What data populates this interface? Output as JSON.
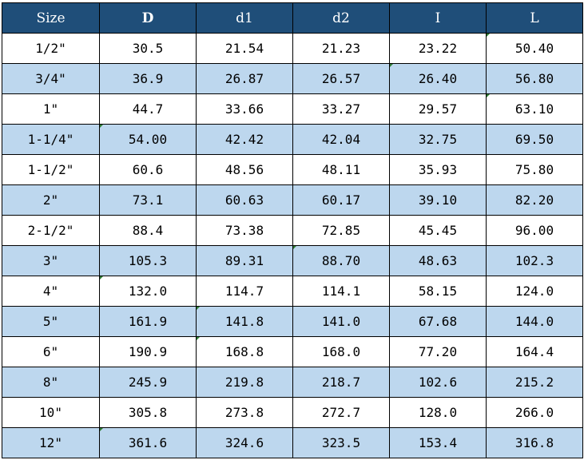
{
  "headers": [
    "Size",
    "D",
    "d1",
    "d2",
    "I",
    "L"
  ],
  "rows": [
    [
      "1/2\"",
      "30.5",
      "21.54",
      "21.23",
      "23.22",
      "50.40"
    ],
    [
      "3/4\"",
      "36.9",
      "26.87",
      "26.57",
      "26.40",
      "56.80"
    ],
    [
      "1\"",
      "44.7",
      "33.66",
      "33.27",
      "29.57",
      "63.10"
    ],
    [
      "1-1/4\"",
      "54.00",
      "42.42",
      "42.04",
      "32.75",
      "69.50"
    ],
    [
      "1-1/2\"",
      "60.6",
      "48.56",
      "48.11",
      "35.93",
      "75.80"
    ],
    [
      "2\"",
      "73.1",
      "60.63",
      "60.17",
      "39.10",
      "82.20"
    ],
    [
      "2-1/2\"",
      "88.4",
      "73.38",
      "72.85",
      "45.45",
      "96.00"
    ],
    [
      "3\"",
      "105.3",
      "89.31",
      "88.70",
      "48.63",
      "102.3"
    ],
    [
      "4\"",
      "132.0",
      "114.7",
      "114.1",
      "58.15",
      "124.0"
    ],
    [
      "5\"",
      "161.9",
      "141.8",
      "141.0",
      "67.68",
      "144.0"
    ],
    [
      "6\"",
      "190.9",
      "168.8",
      "168.0",
      "77.20",
      "164.4"
    ],
    [
      "8\"",
      "245.9",
      "219.8",
      "218.7",
      "102.6",
      "215.2"
    ],
    [
      "10\"",
      "305.8",
      "273.8",
      "272.7",
      "128.0",
      "266.0"
    ],
    [
      "12\"",
      "361.6",
      "324.6",
      "323.5",
      "153.4",
      "316.8"
    ]
  ],
  "colors": {
    "header_bg": "#1f4e79",
    "header_text": "#ffffff",
    "alt_row_bg": "#bdd7ee",
    "plain_row_bg": "#ffffff",
    "border": "#000000",
    "marker": "#2e7d32"
  }
}
